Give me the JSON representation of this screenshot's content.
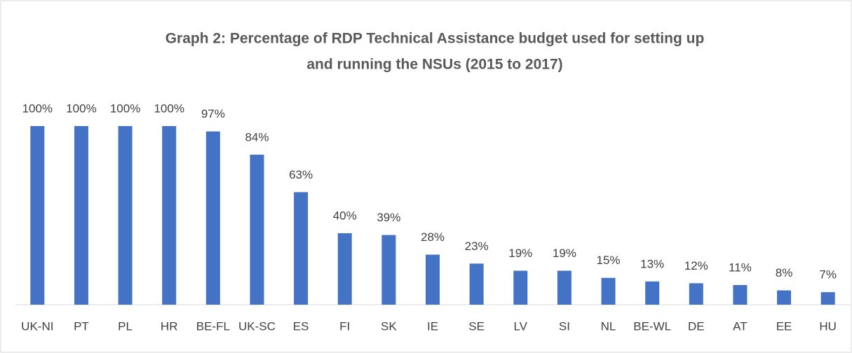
{
  "chart_data": {
    "type": "bar",
    "title": [
      "Graph 2: Percentage of RDP Technical Assistance budget used for setting up",
      "and running the NSUs (2015 to 2017)"
    ],
    "categories": [
      "UK-NI",
      "PT",
      "PL",
      "HR",
      "BE-FL",
      "UK-SC",
      "ES",
      "FI",
      "SK",
      "IE",
      "SE",
      "LV",
      "SI",
      "NL",
      "BE-WL",
      "DE",
      "AT",
      "EE",
      "HU"
    ],
    "values": [
      100,
      100,
      100,
      100,
      97,
      84,
      63,
      40,
      39,
      28,
      23,
      19,
      19,
      15,
      13,
      12,
      11,
      8,
      7
    ],
    "value_labels": [
      "100%",
      "100%",
      "100%",
      "100%",
      "97%",
      "84%",
      "63%",
      "40%",
      "39%",
      "28%",
      "23%",
      "19%",
      "19%",
      "15%",
      "13%",
      "12%",
      "11%",
      "8%",
      "7%"
    ],
    "color": "#4472c4"
  }
}
